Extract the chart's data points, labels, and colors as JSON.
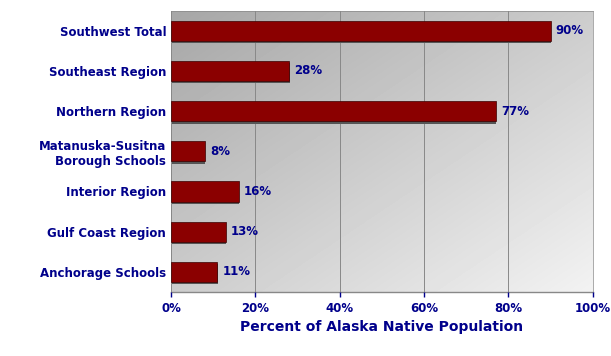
{
  "categories": [
    "Anchorage Schools",
    "Gulf Coast Region",
    "Interior Region",
    "Matanuska-Susitna\nBorough Schools",
    "Northern Region",
    "Southeast Region",
    "Southwest Total"
  ],
  "values": [
    11,
    13,
    16,
    8,
    77,
    28,
    90
  ],
  "bar_color": "#8B0000",
  "bar_edge_color": "#5a0000",
  "label_color": "#00008B",
  "xlabel": "Percent of Alaska Native Population",
  "xlabel_color": "#00008B",
  "tick_color": "#00008B",
  "xlim": [
    0,
    100
  ],
  "xticks": [
    0,
    20,
    40,
    60,
    80,
    100
  ],
  "xtick_labels": [
    "0%",
    "20%",
    "40%",
    "60%",
    "80%",
    "100%"
  ],
  "background_color": "#ffffff",
  "bar_label_fontsize": 8.5,
  "axis_label_fontsize": 10,
  "tick_fontsize": 8.5,
  "ytick_fontsize": 8.5
}
